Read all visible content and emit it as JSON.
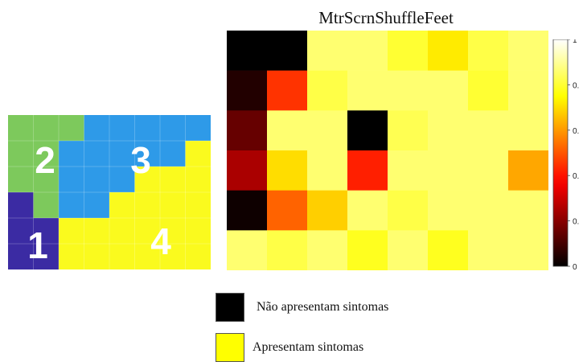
{
  "region_map": {
    "rows": 6,
    "cols": 8,
    "grid": [
      [
        2,
        2,
        2,
        3,
        3,
        3,
        3,
        3
      ],
      [
        2,
        2,
        3,
        3,
        3,
        3,
        3,
        4
      ],
      [
        2,
        2,
        3,
        3,
        3,
        4,
        4,
        4
      ],
      [
        1,
        2,
        3,
        3,
        4,
        4,
        4,
        4
      ],
      [
        1,
        1,
        4,
        4,
        4,
        4,
        4,
        4
      ],
      [
        1,
        1,
        4,
        4,
        4,
        4,
        4,
        4
      ]
    ],
    "region_colors": {
      "1": "#3b2ba3",
      "2": "#7dc95c",
      "3": "#2e9ae8",
      "4": "#fafa1e"
    },
    "labels": [
      {
        "text": "2",
        "region": 2
      },
      {
        "text": "3",
        "region": 3
      },
      {
        "text": "1",
        "region": 1
      },
      {
        "text": "4",
        "region": 4
      }
    ]
  },
  "chart_data": {
    "type": "heatmap",
    "title": "MtrScrnShuffleFeet",
    "colormap": "hot",
    "clim": [
      0,
      1
    ],
    "rows": 6,
    "cols": 8,
    "values": [
      [
        0.0,
        0.0,
        0.86,
        0.86,
        0.8,
        0.72,
        0.82,
        0.86
      ],
      [
        0.05,
        0.45,
        0.82,
        0.86,
        0.86,
        0.86,
        0.8,
        0.86
      ],
      [
        0.15,
        0.86,
        0.86,
        0.0,
        0.83,
        0.86,
        0.86,
        0.86
      ],
      [
        0.25,
        0.7,
        0.86,
        0.42,
        0.86,
        0.86,
        0.86,
        0.62
      ],
      [
        0.02,
        0.52,
        0.68,
        0.86,
        0.82,
        0.86,
        0.86,
        0.86
      ],
      [
        0.86,
        0.82,
        0.86,
        0.78,
        0.86,
        0.78,
        0.86,
        0.86
      ]
    ],
    "colorbar_ticks": [
      "0",
      "0.",
      "0.",
      "0.",
      "0.",
      "1"
    ]
  },
  "legend": {
    "items": [
      {
        "label": "Não apresentam sintomas",
        "color": "#000000"
      },
      {
        "label": "Apresentam sintomas",
        "color": "#ffff00"
      }
    ]
  }
}
